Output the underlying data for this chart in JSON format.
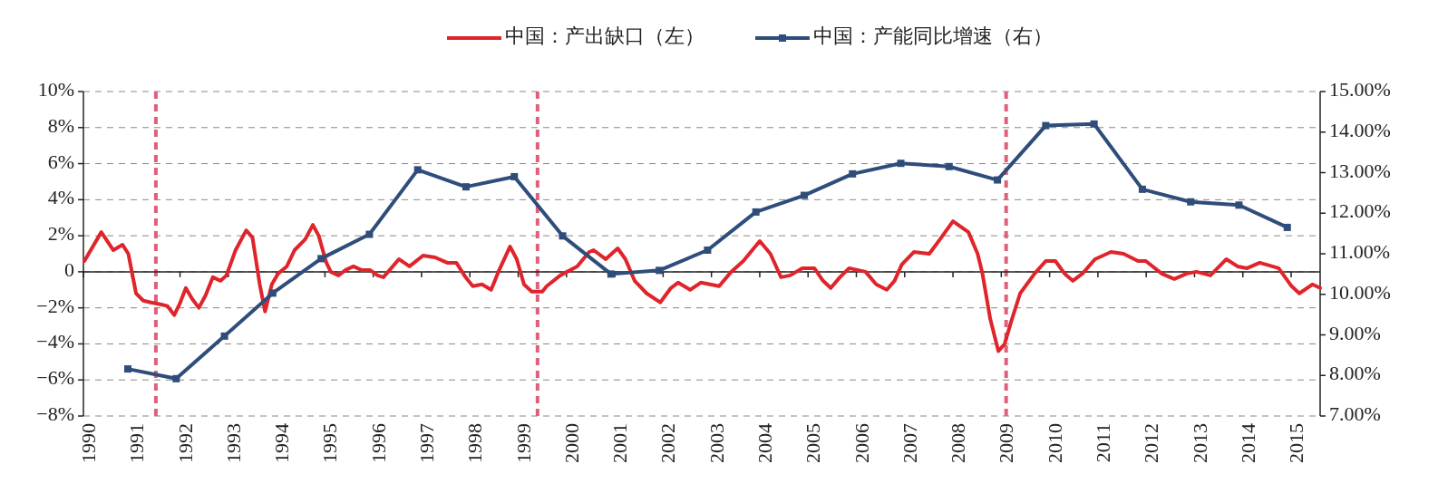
{
  "chart_data": {
    "type": "line",
    "legend": "top",
    "grid": "y",
    "line_style": "solid",
    "xlim": [
      1990,
      2015.6
    ],
    "xticks": [
      1990,
      1991,
      1992,
      1993,
      1994,
      1995,
      1996,
      1997,
      1998,
      1999,
      2000,
      2001,
      2002,
      2003,
      2004,
      2005,
      2006,
      2007,
      2008,
      2009,
      2010,
      2011,
      2012,
      2013,
      2014,
      2015
    ],
    "ylim": [
      -8,
      10
    ],
    "yticks": [
      {
        "value": -8,
        "label": "−8%"
      },
      {
        "value": -6,
        "label": "−6%"
      },
      {
        "value": -4,
        "label": "−4%"
      },
      {
        "value": -2,
        "label": "−2%"
      },
      0,
      {
        "value": 2,
        "label": "2%"
      },
      {
        "value": 4,
        "label": "4%"
      },
      {
        "value": 6,
        "label": "6%"
      },
      {
        "value": 8,
        "label": "8%"
      },
      {
        "value": 10,
        "label": "10%"
      }
    ],
    "y2lim": [
      7,
      15
    ],
    "y2ticks": [
      {
        "value": 7,
        "label": "7.00%"
      },
      {
        "value": 8,
        "label": "8.00%"
      },
      {
        "value": 9,
        "label": "9.00%"
      },
      {
        "value": 10,
        "label": "10.00%"
      },
      {
        "value": 11,
        "label": "11.00%"
      },
      {
        "value": 12,
        "label": "12.00%"
      },
      {
        "value": 13,
        "label": "13.00%"
      },
      {
        "value": 14,
        "label": "14.00%"
      },
      {
        "value": 15,
        "label": "15.00%"
      }
    ],
    "ref_lines": [
      {
        "axis": "x",
        "value": 1991.5,
        "color": "#e0607a",
        "line_style": "dashed"
      },
      {
        "axis": "x",
        "value": 1999.4,
        "color": "#e0607a",
        "line_style": "dashed"
      },
      {
        "axis": "x",
        "value": 2009.1,
        "color": "#e0607a",
        "line_style": "dashed"
      }
    ],
    "series": [
      {
        "name": "中国：产出缺口（左）",
        "color": "#e0242b",
        "marker": "none",
        "x": [
          1990.02,
          1990.37,
          1990.62,
          1990.81,
          1990.93,
          1991.09,
          1991.24,
          1991.4,
          1991.59,
          1991.74,
          1991.88,
          1991.99,
          1992.12,
          1992.25,
          1992.39,
          1992.53,
          1992.68,
          1992.84,
          1992.96,
          1993.15,
          1993.37,
          1993.5,
          1993.65,
          1993.76,
          1993.9,
          1994.03,
          1994.21,
          1994.37,
          1994.59,
          1994.75,
          1994.87,
          1995.03,
          1995.12,
          1995.28,
          1995.43,
          1995.59,
          1995.75,
          1995.93,
          1996.09,
          1996.21,
          1996.34,
          1996.53,
          1996.75,
          1997.03,
          1997.28,
          1997.53,
          1997.72,
          1997.91,
          1998.06,
          1998.25,
          1998.44,
          1998.59,
          1998.83,
          1998.97,
          1999.12,
          1999.28,
          1999.5,
          1999.59,
          1999.87,
          2000.22,
          2000.47,
          2000.56,
          2000.81,
          2001.06,
          2001.22,
          2001.41,
          2001.66,
          2001.94,
          2002.16,
          2002.31,
          2002.56,
          2002.78,
          2003.16,
          2003.41,
          2003.66,
          2004.0,
          2004.22,
          2004.44,
          2004.63,
          2004.88,
          2005.13,
          2005.31,
          2005.47,
          2005.66,
          2005.85,
          2006.19,
          2006.41,
          2006.63,
          2006.79,
          2006.94,
          2007.19,
          2007.51,
          2007.73,
          2008.0,
          2008.32,
          2008.51,
          2008.61,
          2008.77,
          2008.94,
          2009.07,
          2009.2,
          2009.39,
          2009.69,
          2009.92,
          2010.12,
          2010.31,
          2010.48,
          2010.68,
          2010.94,
          2011.27,
          2011.53,
          2011.83,
          2011.99,
          2012.32,
          2012.58,
          2012.84,
          2013.04,
          2013.33,
          2013.66,
          2013.89,
          2014.09,
          2014.35,
          2014.74,
          2015.01,
          2015.17,
          2015.44,
          2015.6
        ],
        "values": [
          0.6,
          2.2,
          1.2,
          1.5,
          1.0,
          -1.2,
          -1.6,
          -1.7,
          -1.8,
          -1.9,
          -2.4,
          -1.8,
          -0.9,
          -1.5,
          -2.0,
          -1.3,
          -0.3,
          -0.5,
          -0.2,
          1.2,
          2.3,
          1.9,
          -0.7,
          -2.2,
          -0.7,
          -0.1,
          0.3,
          1.2,
          1.8,
          2.6,
          2.0,
          0.5,
          0,
          -0.2,
          0.1,
          0.3,
          0.1,
          0.1,
          -0.2,
          -0.3,
          0.1,
          0.7,
          0.3,
          0.9,
          0.8,
          0.5,
          0.5,
          -0.3,
          -0.8,
          -0.7,
          -1.0,
          0,
          1.4,
          0.7,
          -0.7,
          -1.1,
          -1.1,
          -0.8,
          -0.2,
          0.3,
          1.1,
          1.2,
          0.7,
          1.3,
          0.7,
          -0.5,
          -1.2,
          -1.7,
          -0.9,
          -0.6,
          -1.0,
          -0.6,
          -0.8,
          0,
          0.6,
          1.7,
          1.0,
          -0.3,
          -0.2,
          0.2,
          0.2,
          -0.5,
          -0.9,
          -0.3,
          0.2,
          0,
          -0.7,
          -1.0,
          -0.5,
          0.4,
          1.1,
          1.0,
          1.8,
          2.8,
          2.2,
          1.0,
          -0.1,
          -2.6,
          -4.4,
          -4.0,
          -2.8,
          -1.2,
          -0.1,
          0.6,
          0.6,
          -0.1,
          -0.5,
          -0.1,
          0.7,
          1.1,
          1.0,
          0.6,
          0.6,
          -0.1,
          -0.4,
          -0.1,
          0,
          -0.2,
          0.7,
          0.3,
          0.2,
          0.5,
          0.2,
          -0.8,
          -1.2,
          -0.7,
          -0.9
        ]
      },
      {
        "name": "中国：产能同比增速（右）",
        "color": "#2e4d7b",
        "axis": "y2",
        "marker": "square",
        "x": [
          1990.92,
          1991.92,
          1992.92,
          1993.92,
          1994.92,
          1995.92,
          1996.92,
          1997.92,
          1998.92,
          1999.92,
          2000.92,
          2001.92,
          2002.92,
          2003.92,
          2004.92,
          2005.92,
          2006.92,
          2007.92,
          2008.92,
          2009.92,
          2010.92,
          2011.92,
          2012.92,
          2013.92,
          2014.92
        ],
        "values": [
          8.16,
          7.92,
          8.97,
          10.03,
          10.88,
          11.48,
          13.07,
          12.65,
          12.9,
          11.44,
          10.5,
          10.59,
          11.09,
          12.03,
          12.44,
          12.97,
          13.23,
          13.15,
          12.82,
          14.16,
          14.2,
          12.59,
          12.28,
          12.2,
          11.65
        ]
      }
    ]
  }
}
